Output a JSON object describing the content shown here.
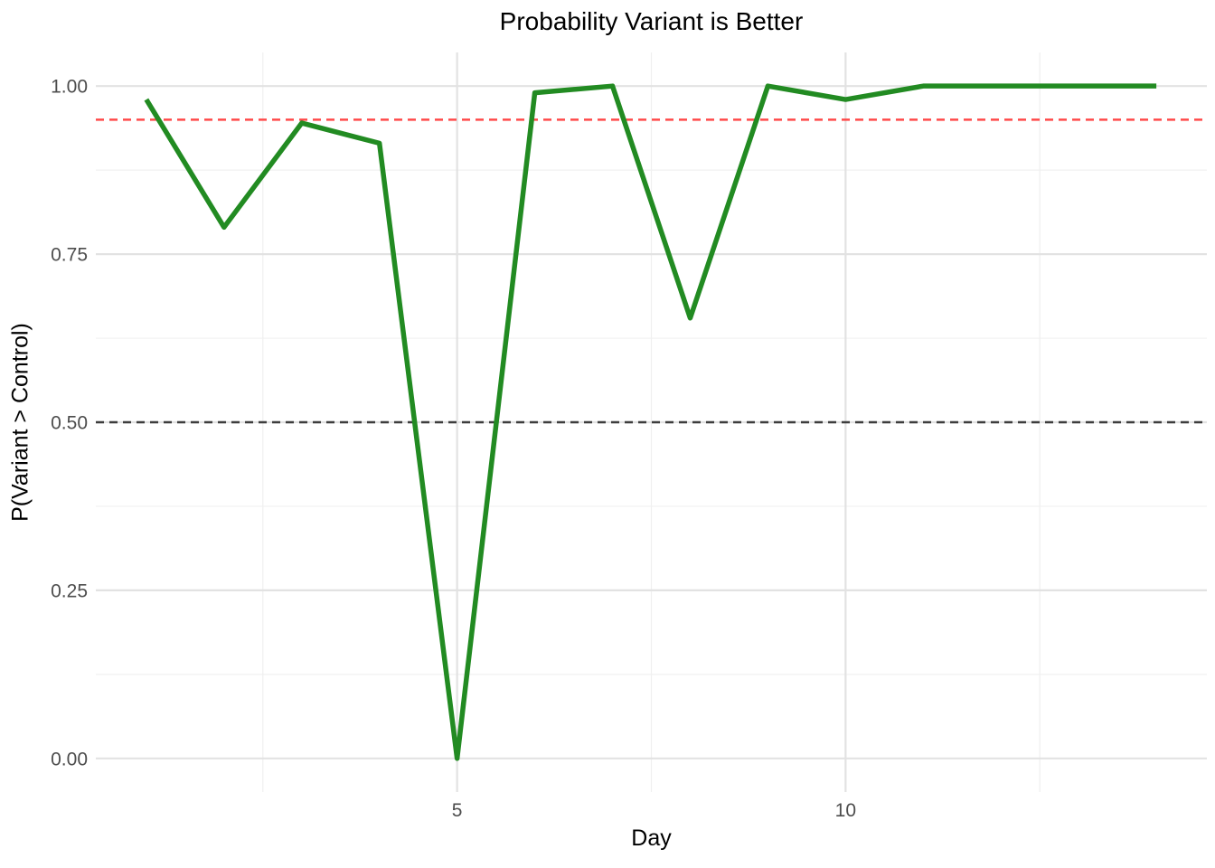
{
  "title": "Probability Variant is Better",
  "chart_data": {
    "type": "line",
    "title": "Probability Variant is Better",
    "xlabel": "Day",
    "ylabel": "P(Variant > Control)",
    "x": [
      1,
      2,
      3,
      4,
      5,
      6,
      7,
      8,
      9,
      10,
      11,
      12,
      13,
      14
    ],
    "series": [
      {
        "name": "P(Variant > Control)",
        "color": "#228B22",
        "values": [
          0.98,
          0.79,
          0.945,
          0.915,
          0.0,
          0.99,
          1.0,
          0.655,
          1.0,
          0.98,
          1.0,
          1.0,
          1.0,
          1.0
        ]
      }
    ],
    "reference_lines": [
      {
        "name": "threshold-0.95",
        "y": 0.95,
        "color": "#FF4A4A",
        "style": "dashed"
      },
      {
        "name": "even-odds-0.50",
        "y": 0.5,
        "color": "#3D3D3D",
        "style": "dashed"
      }
    ],
    "xlim": [
      0.35,
      14.65
    ],
    "ylim": [
      -0.05,
      1.05
    ],
    "x_ticks": {
      "values": [
        5,
        10
      ],
      "labels": [
        "5",
        "10"
      ]
    },
    "y_ticks": {
      "values": [
        0,
        0.25,
        0.5,
        0.75,
        1.0
      ],
      "labels": [
        "0.00",
        "0.25",
        "0.50",
        "0.75",
        "1.00"
      ]
    },
    "x_minor_gridlines": [
      2.5,
      7.5,
      12.5
    ],
    "y_minor_gridlines": [
      0.125,
      0.375,
      0.625,
      0.875
    ],
    "grid": "major+minor",
    "legend": "none",
    "colors": {
      "line": "#228B22",
      "threshold_line": "#FF4A4A",
      "even_odds_line": "#3D3D3D",
      "grid_major": "#E2E2E2",
      "grid_minor": "#F0F0F0",
      "tick_text": "#4D4D4D",
      "title_text": "#000000",
      "background": "#FFFFFF"
    }
  }
}
